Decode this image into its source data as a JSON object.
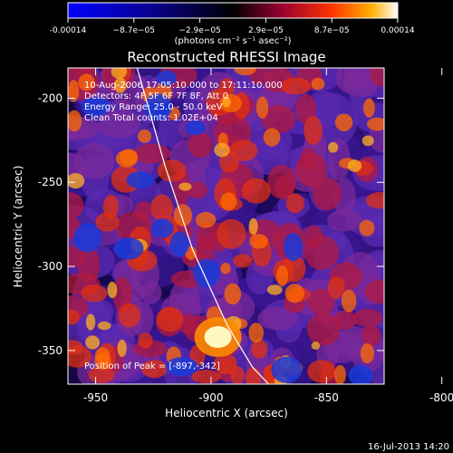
{
  "colorbar": {
    "ticks": [
      "-0.00014",
      "−8.7e−05",
      "−2.9e−05",
      "2.9e−05",
      "8.7e−05",
      "0.00014"
    ],
    "units": "(photons cm⁻² s⁻¹ asec⁻²)"
  },
  "chart_data": {
    "type": "heatmap",
    "title": "Reconstructed RHESSI Image",
    "xlabel": "Heliocentric X (arcsec)",
    "ylabel": "Heliocentric Y (arcsec)",
    "xlim": [
      -962,
      -825
    ],
    "ylim": [
      -370,
      -182
    ],
    "xticks": [
      -950,
      -900,
      -850,
      -800
    ],
    "yticks": [
      -200,
      -250,
      -300,
      -350
    ],
    "value_range": [
      -0.00014,
      0.00014
    ],
    "colormap": "rhessi-blue-black-red-yellow-white",
    "info_lines": [
      "10-Aug-2006 17:05:10.000 to 17:11:10.000",
      "Detectors: 4F 5F 6F 7F 8F, Att 0",
      "Energy Range: 25.0 - 50.0 keV",
      "Clean    Total counts: 1.02E+04"
    ],
    "peak_label": "Position of Peak = [-897,-342]",
    "peak": [
      -897,
      -342
    ],
    "limb_curve": [
      [
        -932,
        -182
      ],
      [
        -920,
        -240
      ],
      [
        -908,
        -290
      ],
      [
        -893,
        -335
      ],
      [
        -882,
        -360
      ],
      [
        -875,
        -370
      ]
    ]
  },
  "footer": {
    "date": "16-Jul-2013 14:20"
  }
}
